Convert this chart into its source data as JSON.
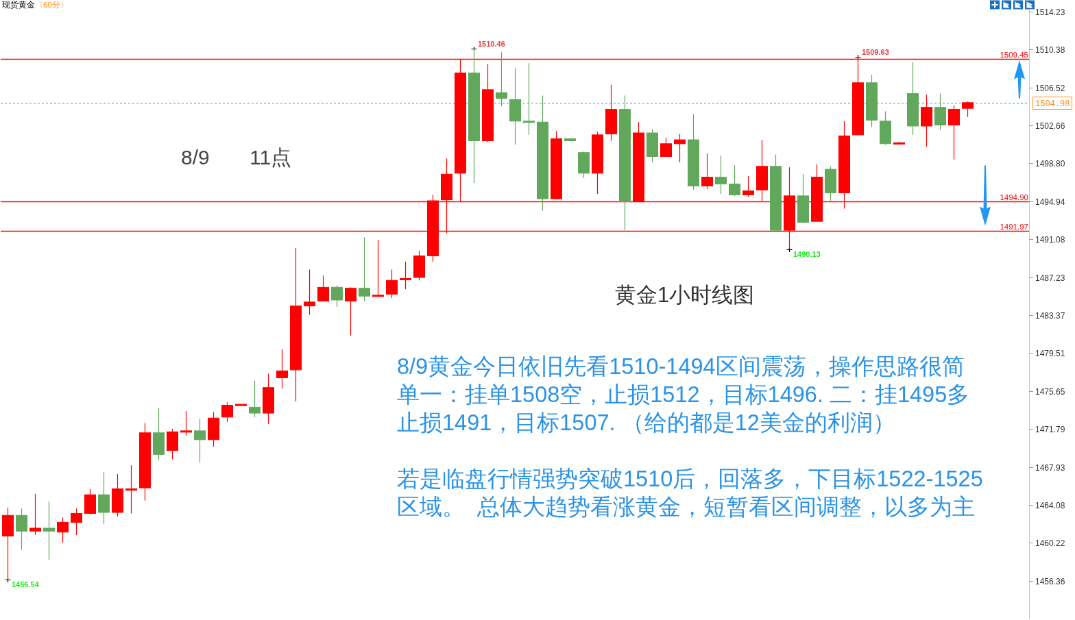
{
  "chart_data": {
    "type": "candlestick",
    "title": "现货黄金",
    "subtitle": "〈60分〉",
    "categories": [
      null,
      null,
      null,
      null,
      null,
      null,
      null,
      null,
      null,
      null,
      null,
      null,
      null,
      null,
      null,
      null,
      null,
      null,
      null,
      null,
      null,
      null,
      null,
      null,
      null,
      null,
      null,
      null,
      null,
      null,
      null,
      null,
      null,
      null,
      null,
      null,
      null,
      null,
      null,
      null,
      null,
      null,
      null,
      null,
      null,
      null,
      null,
      null,
      null,
      null,
      null,
      null,
      null,
      null,
      null,
      null,
      null,
      null,
      null,
      null,
      null,
      null,
      null,
      null,
      null,
      null,
      null,
      null,
      null,
      null,
      null,
      null,
      null,
      null,
      null
    ],
    "ohlc": [
      [
        1460.9,
        1463.8,
        1456.54,
        1463.0
      ],
      [
        1463.0,
        1463.7,
        1459.5,
        1461.4
      ],
      [
        1461.4,
        1465.2,
        1461.0,
        1461.7
      ],
      [
        1461.7,
        1464.4,
        1458.5,
        1461.4
      ],
      [
        1461.3,
        1462.8,
        1460.2,
        1462.3
      ],
      [
        1462.3,
        1463.7,
        1461.0,
        1463.2
      ],
      [
        1463.2,
        1465.7,
        1463.1,
        1465.1
      ],
      [
        1465.1,
        1467.4,
        1462.1,
        1463.3
      ],
      [
        1463.3,
        1467.2,
        1462.9,
        1465.7
      ],
      [
        1465.7,
        1468.1,
        1463.2,
        1465.7
      ],
      [
        1465.8,
        1472.4,
        1464.5,
        1471.4
      ],
      [
        1471.4,
        1473.9,
        1468.6,
        1469.2
      ],
      [
        1469.6,
        1471.8,
        1468.7,
        1471.5
      ],
      [
        1471.6,
        1473.6,
        1471.1,
        1471.6
      ],
      [
        1471.6,
        1472.8,
        1468.4,
        1470.7
      ],
      [
        1470.7,
        1473.5,
        1470.0,
        1472.9
      ],
      [
        1473.0,
        1474.5,
        1472.5,
        1474.2
      ],
      [
        1474.3,
        1474.3,
        1474.3,
        1474.3
      ],
      [
        1474.0,
        1476.7,
        1473.0,
        1473.4
      ],
      [
        1473.4,
        1477.4,
        1472.3,
        1476.0
      ],
      [
        1477.0,
        1479.9,
        1475.9,
        1477.7
      ],
      [
        1477.8,
        1490.2,
        1474.6,
        1484.3
      ],
      [
        1484.3,
        1488.0,
        1483.4,
        1484.7
      ],
      [
        1484.8,
        1487.4,
        1484.8,
        1486.2
      ],
      [
        1486.2,
        1486.4,
        1484.2,
        1484.9
      ],
      [
        1484.8,
        1486.2,
        1481.3,
        1486.1
      ],
      [
        1486.1,
        1491.3,
        1484.8,
        1485.3
      ],
      [
        1485.4,
        1491.0,
        1485.4,
        1485.4
      ],
      [
        1485.5,
        1488.0,
        1485.1,
        1486.9
      ],
      [
        1487.0,
        1488.8,
        1486.0,
        1487.1
      ],
      [
        1487.2,
        1489.9,
        1486.9,
        1489.4
      ],
      [
        1489.4,
        1495.6,
        1488.8,
        1495.0
      ],
      [
        1495.1,
        1499.3,
        1491.7,
        1497.7
      ],
      [
        1497.8,
        1509.4,
        1494.9,
        1508.0
      ],
      [
        1508.0,
        1510.46,
        1496.8,
        1501.1
      ],
      [
        1501.1,
        1508.9,
        1501.0,
        1506.3
      ],
      [
        1506.0,
        1510.1,
        1504.6,
        1505.4
      ],
      [
        1505.3,
        1508.5,
        1500.7,
        1503.1
      ],
      [
        1503.1,
        1509.0,
        1501.7,
        1503.1
      ],
      [
        1503.0,
        1505.7,
        1494.0,
        1495.2
      ],
      [
        1495.2,
        1502.1,
        1495.2,
        1501.3
      ],
      [
        1501.3,
        1501.4,
        1501.1,
        1501.1
      ],
      [
        1499.9,
        1500.0,
        1497.3,
        1497.8
      ],
      [
        1497.8,
        1502.0,
        1495.7,
        1501.7
      ],
      [
        1501.8,
        1506.8,
        1501.1,
        1504.3
      ],
      [
        1504.3,
        1505.7,
        1492.0,
        1494.9
      ],
      [
        1494.9,
        1503.0,
        1494.9,
        1501.9
      ],
      [
        1501.9,
        1502.3,
        1498.9,
        1499.5
      ],
      [
        1499.5,
        1501.4,
        1499.5,
        1500.8
      ],
      [
        1500.8,
        1501.8,
        1498.9,
        1501.2
      ],
      [
        1501.2,
        1503.8,
        1496.1,
        1496.5
      ],
      [
        1496.5,
        1499.8,
        1496.2,
        1497.4
      ],
      [
        1497.4,
        1499.6,
        1495.7,
        1496.7
      ],
      [
        1496.7,
        1498.6,
        1495.5,
        1495.6
      ],
      [
        1495.6,
        1497.5,
        1495.4,
        1496.0
      ],
      [
        1496.1,
        1501.2,
        1495.0,
        1498.5
      ],
      [
        1498.5,
        1499.7,
        1492.0,
        1492.0
      ],
      [
        1492.0,
        1498.4,
        1490.13,
        1495.5
      ],
      [
        1495.5,
        1497.7,
        1492.7,
        1492.8
      ],
      [
        1492.9,
        1498.7,
        1492.9,
        1497.4
      ],
      [
        1498.2,
        1498.5,
        1495.0,
        1495.8
      ],
      [
        1495.8,
        1503.1,
        1494.2,
        1501.6
      ],
      [
        1501.7,
        1509.63,
        1501.7,
        1507.0
      ],
      [
        1507.0,
        1507.8,
        1502.5,
        1503.2
      ],
      [
        1503.1,
        1504.1,
        1500.7,
        1500.8
      ],
      [
        1500.9,
        1501.0,
        1500.9,
        1500.9
      ],
      [
        1505.9,
        1509.1,
        1501.7,
        1502.6
      ],
      [
        1502.6,
        1505.8,
        1500.5,
        1504.5
      ],
      [
        1504.5,
        1505.9,
        1502.2,
        1502.7
      ],
      [
        1502.7,
        1504.7,
        1499.2,
        1504.3
      ],
      [
        1504.4,
        1505.1,
        1503.5,
        1504.98
      ],
      null,
      null,
      null,
      null
    ],
    "colors": [
      "#ff0000",
      "#62a85c",
      "#ff0000",
      "#62a85c",
      "#ff0000",
      "#ff0000",
      "#ff0000",
      "#62a85c",
      "#ff0000",
      "#ff0000",
      "#ff0000",
      "#62a85c",
      "#ff0000",
      "#ff0000",
      "#62a85c",
      "#ff0000",
      "#ff0000",
      "#ff0000",
      "#62a85c",
      "#ff0000",
      "#ff0000",
      "#ff0000",
      "#ff0000",
      "#ff0000",
      "#62a85c",
      "#ff0000",
      "#62a85c",
      "#ff0000",
      "#ff0000",
      "#ff0000",
      "#ff0000",
      "#ff0000",
      "#ff0000",
      "#ff0000",
      "#62a85c",
      "#ff0000",
      "#62a85c",
      "#62a85c",
      "#62a85c",
      "#62a85c",
      "#ff0000",
      "#62a85c",
      "#62a85c",
      "#ff0000",
      "#ff0000",
      "#62a85c",
      "#ff0000",
      "#62a85c",
      "#ff0000",
      "#ff0000",
      "#62a85c",
      "#ff0000",
      "#62a85c",
      "#62a85c",
      "#ff0000",
      "#ff0000",
      "#62a85c",
      "#ff0000",
      "#62a85c",
      "#ff0000",
      "#62a85c",
      "#ff0000",
      "#ff0000",
      "#62a85c",
      "#62a85c",
      "#ff0000",
      "#62a85c",
      "#ff0000",
      "#62a85c",
      "#ff0000",
      "#ff0000",
      null,
      null,
      null,
      null
    ],
    "ylim": [
      1452.5,
      1514.4
    ],
    "yticks": [
      1514.23,
      1510.38,
      1506.52,
      1502.66,
      {
        "value": 1498.8,
        "label": "1498.80"
      },
      1494.94,
      1491.08,
      1487.23,
      1483.37,
      1479.51,
      1475.65,
      1471.79,
      1467.93,
      1464.08,
      1460.22,
      1456.36
    ],
    "tick_labels": "y",
    "ref_lines": [
      {
        "axis": "y",
        "value": 1509.45,
        "label": "1509.45",
        "color": "#ff0000"
      },
      {
        "axis": "y",
        "value": 1504.98,
        "label": "1504.98",
        "color": "#1e90ff",
        "line_style": "dashed"
      },
      {
        "axis": "y",
        "value": 1494.9,
        "label": "1494.90",
        "color": "#ff0000"
      },
      {
        "axis": "y",
        "value": 1491.97,
        "label": "1491.97",
        "color": "#ff0000"
      }
    ],
    "annotations": [
      "8/9       11点",
      "黄金1小时线图",
      "8/9黄金今日依旧先看1510-1494区间震荡，操作思路很简单一：挂单1508空，止损1512，目标1496. 二：挂1495多止损1491，目标1507. （给的都是12美金的利润）",
      "若是临盘行情强势突破1510后，回落多，下目标1522-1525区域。  总体大趋势看涨黄金，短暂看区间调整，以多为主",
      "1510.46",
      "1509.63",
      "1490.13",
      "1456.54"
    ]
  }
}
